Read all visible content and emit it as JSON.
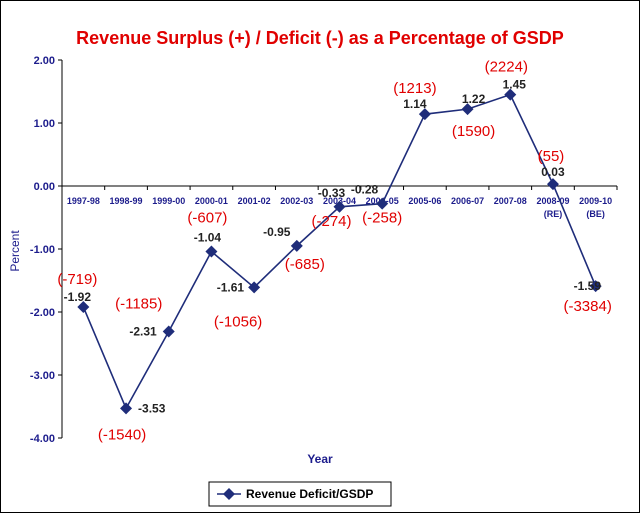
{
  "chart_data": {
    "type": "line",
    "title": "Revenue Surplus (+) / Deficit (-) as a Percentage of GSDP",
    "xlabel": "Year",
    "ylabel": "Percent",
    "ylim": [
      -4,
      2
    ],
    "yticks": [
      "2.00",
      "1.00",
      "0.00",
      "-1.00",
      "-2.00",
      "-3.00",
      "-4.00"
    ],
    "categories": [
      "1997-98",
      "1998-99",
      "1999-00",
      "2000-01",
      "2001-02",
      "2002-03",
      "2003-04",
      "2004-05",
      "2005-06",
      "2006-07",
      "2007-08",
      "2008-09 (RE)",
      "2009-10 (BE)"
    ],
    "tick_labels": [
      [
        "1997-98"
      ],
      [
        "1998-99"
      ],
      [
        "1999-00"
      ],
      [
        "2000-01"
      ],
      [
        "2001-02"
      ],
      [
        "2002-03"
      ],
      [
        "2003-04"
      ],
      [
        "2004-05"
      ],
      [
        "2005-06"
      ],
      [
        "2006-07"
      ],
      [
        "2007-08"
      ],
      [
        "2008-09",
        "(RE)"
      ],
      [
        "2009-10",
        "(BE)"
      ]
    ],
    "series": [
      {
        "name": "Revenue Deficit/GSDP",
        "values": [
          -1.92,
          -3.53,
          -2.31,
          -1.04,
          -1.61,
          -0.95,
          -0.33,
          -0.28,
          1.14,
          1.22,
          1.45,
          0.03,
          -1.59
        ],
        "value_labels": [
          "-1.92",
          "-3.53",
          "-2.31",
          "-1.04",
          "-1.61",
          "-0.95",
          "-0.33",
          "-0.28",
          "1.14",
          "1.22",
          "1.45",
          "0.03",
          "-1.59"
        ],
        "color": "#1f2d7a",
        "marker": "diamond"
      }
    ],
    "annotations": [
      "(-719)",
      "(-1540)",
      "(-1185)",
      "(-607)",
      "(-1056)",
      "(-685)",
      "(-274)",
      "(-258)",
      "(1213)",
      "(1590)",
      "(2224)",
      "(55)",
      "(-3384)"
    ],
    "grid": false,
    "legend": "bottom-center",
    "colors": {
      "title": "#e00000",
      "axis_text": "#1c1c8c",
      "value_labels": "#222222",
      "annotations": "#e00000",
      "line": "#1f2d7a"
    }
  }
}
